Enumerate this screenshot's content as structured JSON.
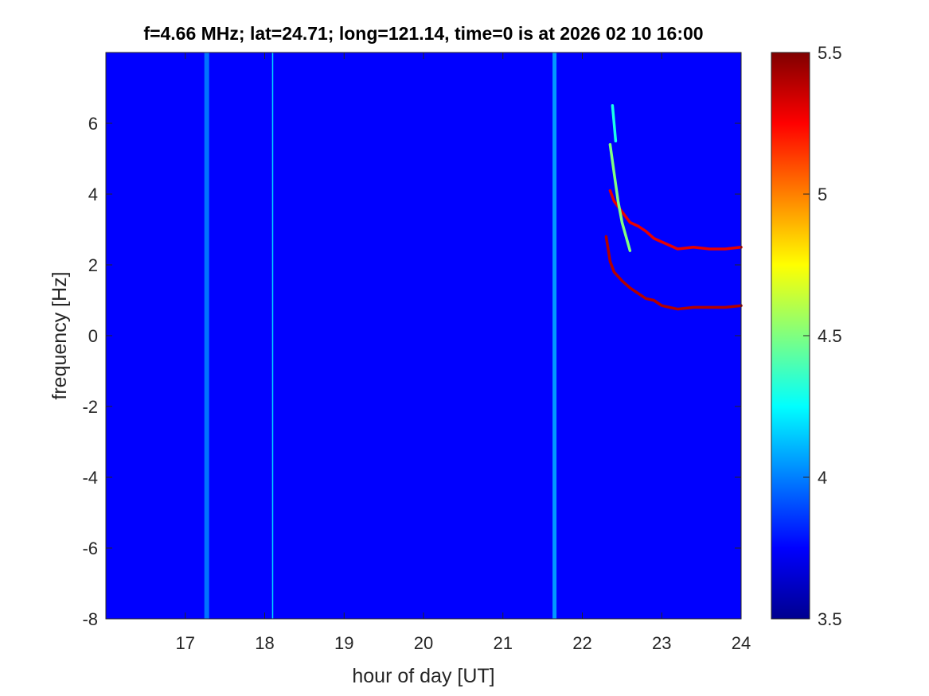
{
  "chart_data": {
    "type": "heatmap",
    "title": "f=4.66 MHz;  lat=24.71; long=121.14, time=0 is at 2026 02 10 16:00",
    "xlabel": "hour of day [UT]",
    "ylabel": "frequency [Hz]",
    "xlim": [
      16,
      24
    ],
    "ylim": [
      -8,
      8
    ],
    "xticks": [
      17,
      18,
      19,
      20,
      21,
      22,
      23,
      24
    ],
    "xtick_labels": [
      "17",
      "18",
      "19",
      "20",
      "21",
      "22",
      "23",
      "24"
    ],
    "yticks": [
      -8,
      -6,
      -4,
      -2,
      0,
      2,
      4,
      6
    ],
    "ytick_labels": [
      "-8",
      "-6",
      "-4",
      "-2",
      "0",
      "2",
      "4",
      "6"
    ],
    "colorbar": {
      "colormap": "jet",
      "clim": [
        3.5,
        5.5
      ],
      "ticks": [
        3.5,
        4,
        4.5,
        5,
        5.5
      ],
      "tick_labels": [
        "3.5",
        "4",
        "4.5",
        "5",
        "5.5"
      ]
    },
    "background_level": 3.75,
    "features": [
      {
        "kind": "vertical_band",
        "hour": 17.27,
        "width_hours": 0.06,
        "level": 4.05
      },
      {
        "kind": "vertical_line",
        "hour": 18.1,
        "width_hours": 0.015,
        "level": 4.2
      },
      {
        "kind": "vertical_band",
        "hour": 21.65,
        "width_hours": 0.05,
        "level": 4.15
      },
      {
        "kind": "trace",
        "level": 5.4,
        "points": [
          [
            22.3,
            2.8
          ],
          [
            22.35,
            2.1
          ],
          [
            22.4,
            1.8
          ],
          [
            22.5,
            1.55
          ],
          [
            22.6,
            1.35
          ],
          [
            22.7,
            1.2
          ],
          [
            22.8,
            1.05
          ],
          [
            22.9,
            1.0
          ],
          [
            23.0,
            0.85
          ],
          [
            23.1,
            0.8
          ],
          [
            23.2,
            0.75
          ],
          [
            23.4,
            0.8
          ],
          [
            23.6,
            0.8
          ],
          [
            23.8,
            0.8
          ],
          [
            24.0,
            0.85
          ]
        ]
      },
      {
        "kind": "trace",
        "level": 5.3,
        "points": [
          [
            22.35,
            4.1
          ],
          [
            22.4,
            3.8
          ],
          [
            22.5,
            3.5
          ],
          [
            22.6,
            3.2
          ],
          [
            22.7,
            3.1
          ],
          [
            22.8,
            2.95
          ],
          [
            22.9,
            2.75
          ],
          [
            23.0,
            2.65
          ],
          [
            23.1,
            2.55
          ],
          [
            23.2,
            2.45
          ],
          [
            23.4,
            2.5
          ],
          [
            23.6,
            2.45
          ],
          [
            23.8,
            2.45
          ],
          [
            24.0,
            2.5
          ]
        ]
      },
      {
        "kind": "trace",
        "level": 4.5,
        "points": [
          [
            22.35,
            5.4
          ],
          [
            22.4,
            4.6
          ],
          [
            22.45,
            3.8
          ],
          [
            22.5,
            3.2
          ],
          [
            22.55,
            2.8
          ],
          [
            22.6,
            2.4
          ]
        ]
      },
      {
        "kind": "trace",
        "level": 4.3,
        "points": [
          [
            22.38,
            6.5
          ],
          [
            22.4,
            6.0
          ],
          [
            22.42,
            5.5
          ]
        ]
      }
    ]
  }
}
